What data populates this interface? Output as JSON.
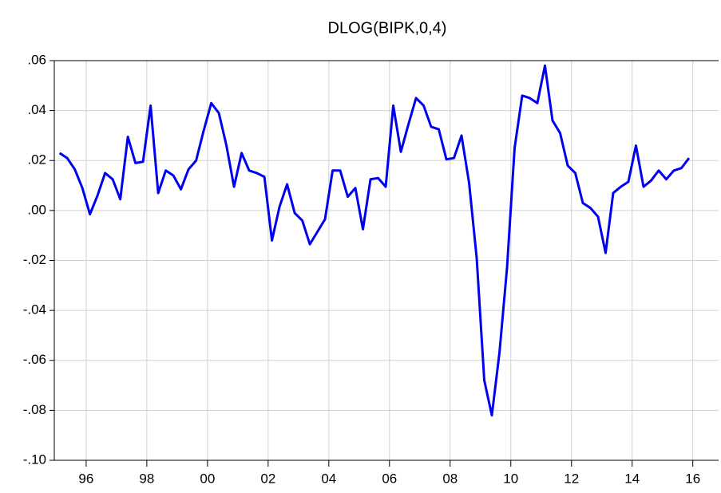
{
  "chart_data": {
    "type": "line",
    "title": "DLOG(BIPK,0,4)",
    "x": [
      1995.125,
      1995.375,
      1995.625,
      1995.875,
      1996.125,
      1996.375,
      1996.625,
      1996.875,
      1997.125,
      1997.375,
      1997.625,
      1997.875,
      1998.125,
      1998.375,
      1998.625,
      1998.875,
      1999.125,
      1999.375,
      1999.625,
      1999.875,
      2000.125,
      2000.375,
      2000.625,
      2000.875,
      2001.125,
      2001.375,
      2001.625,
      2001.875,
      2002.125,
      2002.375,
      2002.625,
      2002.875,
      2003.125,
      2003.375,
      2003.625,
      2003.875,
      2004.125,
      2004.375,
      2004.625,
      2004.875,
      2005.125,
      2005.375,
      2005.625,
      2005.875,
      2006.125,
      2006.375,
      2006.625,
      2006.875,
      2007.125,
      2007.375,
      2007.625,
      2007.875,
      2008.125,
      2008.375,
      2008.625,
      2008.875,
      2009.125,
      2009.375,
      2009.625,
      2009.875,
      2010.125,
      2010.375,
      2010.625,
      2010.875,
      2011.125,
      2011.375,
      2011.625,
      2011.875,
      2012.125,
      2012.375,
      2012.625,
      2012.875,
      2013.125,
      2013.375,
      2013.625,
      2013.875,
      2014.125,
      2014.375,
      2014.625,
      2014.875,
      2015.125,
      2015.375,
      2015.625,
      2015.875
    ],
    "series": [
      {
        "color": "#0000ee",
        "values": [
          0.023,
          0.021,
          0.0165,
          0.009,
          -0.0015,
          0.006,
          0.015,
          0.0125,
          0.0045,
          0.0295,
          0.019,
          0.0195,
          0.042,
          0.007,
          0.016,
          0.014,
          0.0085,
          0.0165,
          0.02,
          0.032,
          0.043,
          0.039,
          0.026,
          0.0095,
          0.023,
          0.016,
          0.015,
          0.0135,
          -0.012,
          0.0015,
          0.0105,
          -0.001,
          -0.004,
          -0.0135,
          -0.0085,
          -0.0035,
          0.016,
          0.016,
          0.0055,
          0.009,
          -0.0075,
          0.0125,
          0.013,
          0.0095,
          0.042,
          0.0235,
          0.0345,
          0.045,
          0.042,
          0.0335,
          0.0325,
          0.0205,
          0.021,
          0.03,
          0.011,
          -0.019,
          -0.068,
          -0.082,
          -0.057,
          -0.023,
          0.025,
          0.046,
          0.045,
          0.043,
          0.058,
          0.036,
          0.031,
          0.018,
          0.015,
          0.003,
          0.001,
          -0.0025,
          -0.017,
          0.007,
          0.0095,
          0.0115,
          0.026,
          0.0095,
          0.012,
          0.016,
          0.0125,
          0.016,
          0.017,
          0.021
        ]
      }
    ],
    "xlim": [
      1994.95,
      2016.85
    ],
    "xticks": [
      {
        "value": 1996,
        "label": "96"
      },
      {
        "value": 1998,
        "label": "98"
      },
      {
        "value": 2000,
        "label": "00"
      },
      {
        "value": 2002,
        "label": "02"
      },
      {
        "value": 2004,
        "label": "04"
      },
      {
        "value": 2006,
        "label": "06"
      },
      {
        "value": 2008,
        "label": "08"
      },
      {
        "value": 2010,
        "label": "10"
      },
      {
        "value": 2012,
        "label": "12"
      },
      {
        "value": 2014,
        "label": "14"
      },
      {
        "value": 2016,
        "label": "16"
      }
    ],
    "ylim": [
      -0.1,
      0.06
    ],
    "yticks": [
      {
        "value": -0.1,
        "label": "-.10"
      },
      {
        "value": -0.08,
        "label": "-.08"
      },
      {
        "value": -0.06,
        "label": "-.06"
      },
      {
        "value": -0.04,
        "label": "-.04"
      },
      {
        "value": -0.02,
        "label": "-.02"
      },
      {
        "value": 0,
        "label": ".00"
      },
      {
        "value": 0.02,
        "label": ".02"
      },
      {
        "value": 0.04,
        "label": ".04"
      },
      {
        "value": 0.06,
        "label": ".06"
      }
    ],
    "grid": true
  }
}
